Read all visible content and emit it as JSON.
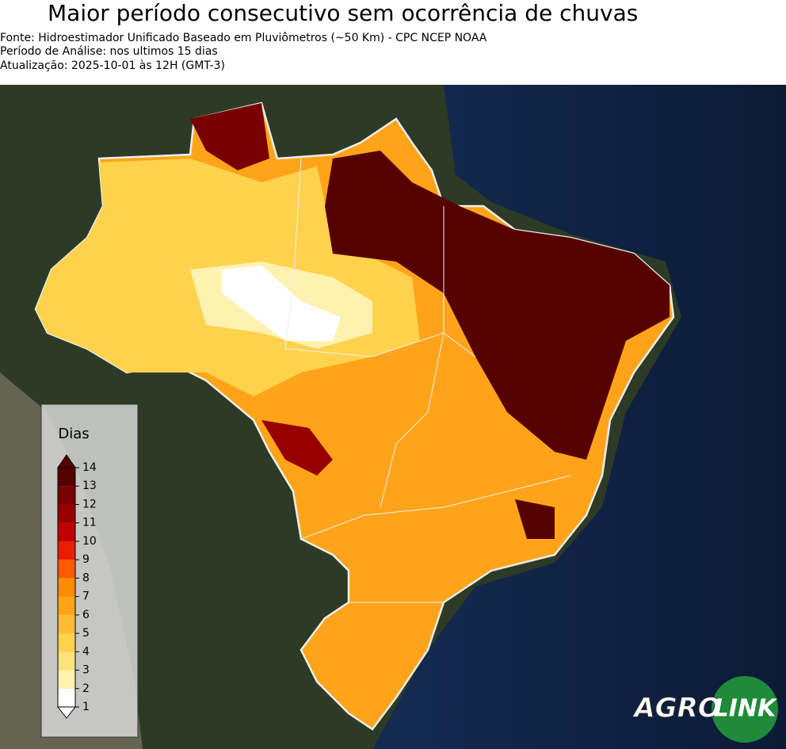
{
  "header": {
    "title": "Maior período consecutivo sem ocorrência de chuvas",
    "source": "Fonte: Hidroestimador Unificado Baseado em Pluviômetros (~50 Km) - CPC NCEP NOAA",
    "period": "Período de Análise: nos ultimos 15 dias",
    "updated": "Atualização: 2025-10-01 às 12H (GMT-3)"
  },
  "legend": {
    "title": "Dias",
    "ticks": [
      1,
      2,
      3,
      4,
      5,
      6,
      7,
      8,
      9,
      10,
      11,
      12,
      13,
      14
    ],
    "colors": [
      "#ffffff",
      "#fff2b0",
      "#ffe27a",
      "#ffd24d",
      "#ffbb33",
      "#ffa41a",
      "#ff8c00",
      "#ff5a00",
      "#e81e00",
      "#c00000",
      "#980000",
      "#780000",
      "#560000"
    ]
  },
  "logo": {
    "part1": "AGRO",
    "part2": "LINK"
  }
}
